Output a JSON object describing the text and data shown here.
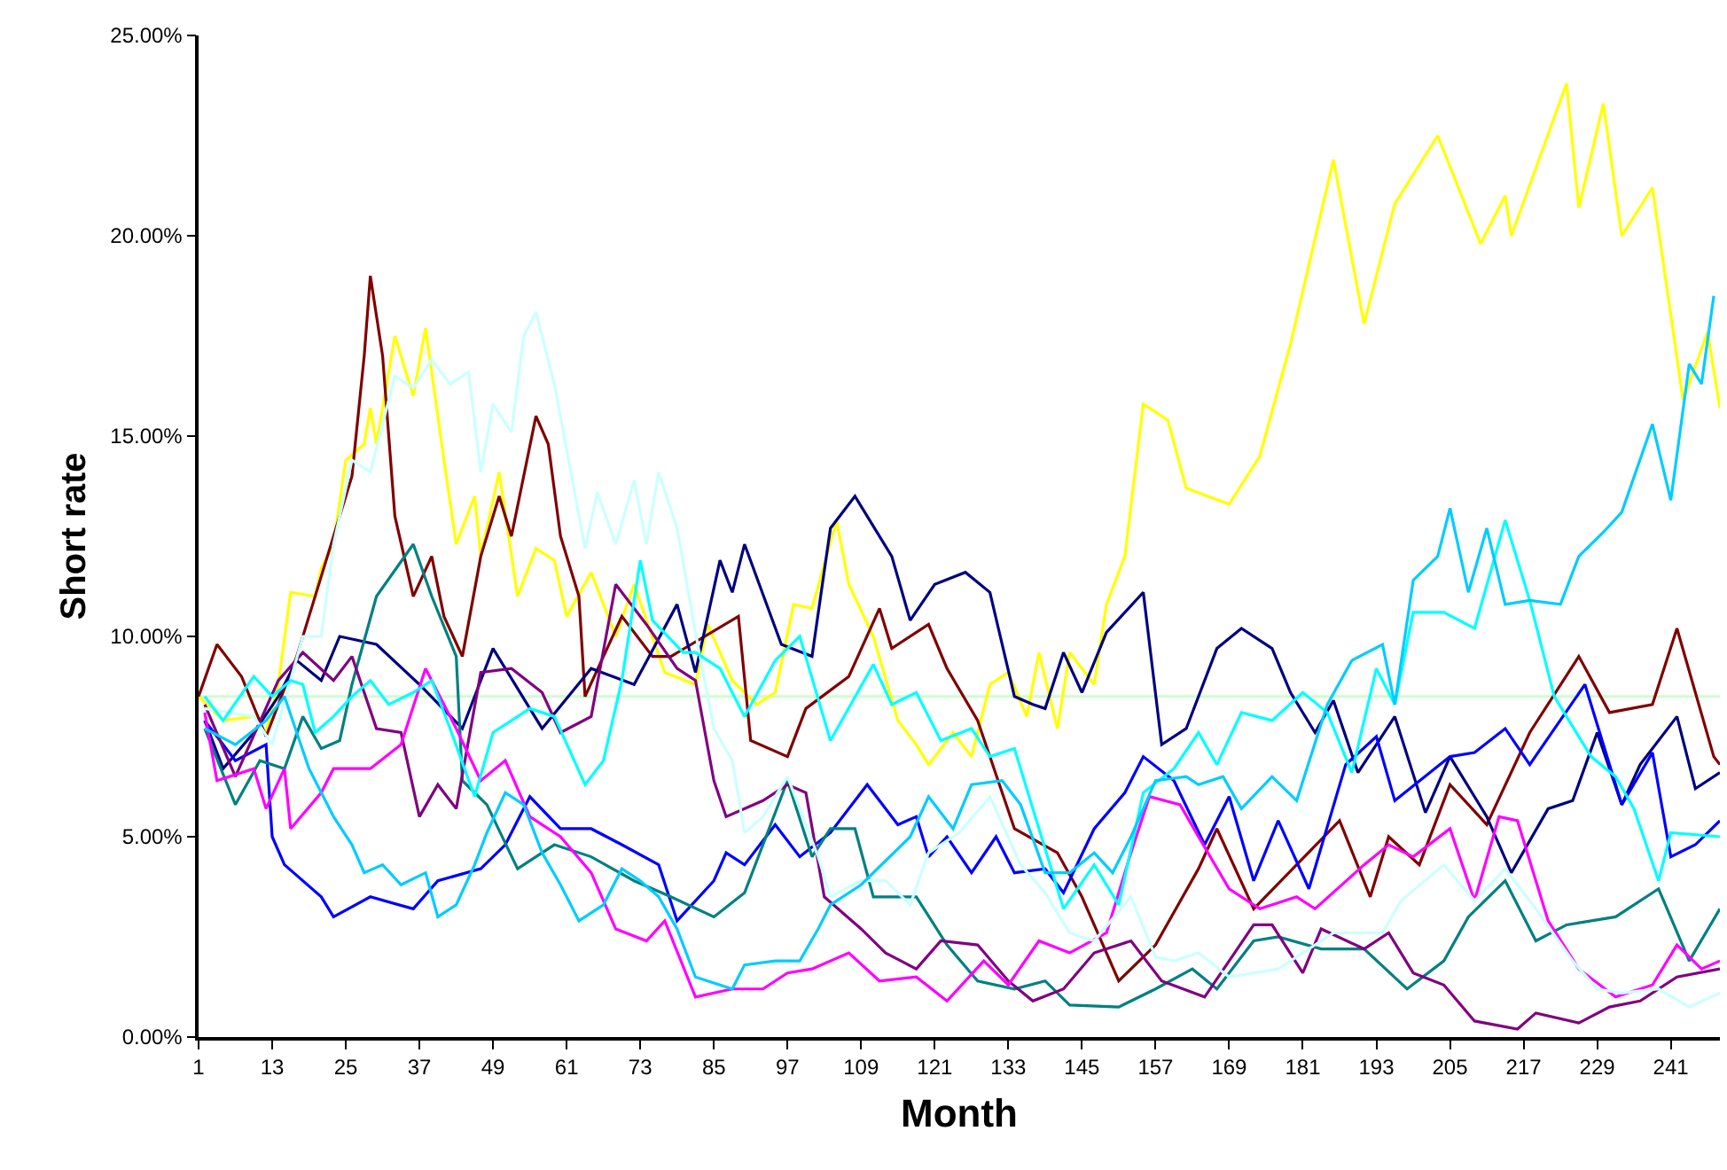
{
  "chart_data": {
    "type": "line",
    "xlabel": "Month",
    "ylabel": "Short rate",
    "xlim": [
      1,
      249
    ],
    "xticks": [
      1,
      13,
      25,
      37,
      49,
      61,
      73,
      85,
      97,
      109,
      121,
      133,
      145,
      157,
      169,
      181,
      193,
      205,
      217,
      229,
      241
    ],
    "ylim": [
      0,
      25
    ],
    "yticks": [
      {
        "value": 0,
        "label": "0.00%"
      },
      {
        "value": 5,
        "label": "5.00%"
      },
      {
        "value": 10,
        "label": "10.00%"
      },
      {
        "value": 15,
        "label": "15.00%"
      },
      {
        "value": 20,
        "label": "20.00%"
      },
      {
        "value": 25,
        "label": "25.00%"
      }
    ],
    "grid": false,
    "marker": "none",
    "line_style": "solid",
    "ref_lines": [
      {
        "axis": "y",
        "value": 8.5,
        "color": "#ccffcc"
      }
    ],
    "series": [
      {
        "color": "#ffff00",
        "x": [
          1,
          5,
          10,
          12,
          14,
          16,
          20,
          21,
          23,
          25,
          28,
          29,
          30,
          33,
          36,
          38,
          41,
          43,
          46,
          47,
          50,
          53,
          56,
          59,
          61,
          65,
          69,
          72,
          77,
          82,
          84,
          88,
          92,
          95,
          98,
          101,
          105,
          107,
          111,
          115,
          118,
          120,
          124,
          127,
          130,
          133,
          136,
          138,
          141,
          143,
          147,
          149,
          152,
          155,
          159,
          162,
          169,
          174,
          179,
          186,
          191,
          196,
          203,
          210,
          214,
          215,
          224,
          226,
          230,
          233,
          238,
          243,
          247,
          249
        ],
        "values": [
          8.5,
          7.9,
          8,
          7.6,
          8.8,
          11.1,
          11,
          11.7,
          12.3,
          14.4,
          14.8,
          15.7,
          14.8,
          17.5,
          16,
          17.7,
          14.4,
          12.3,
          13.5,
          12,
          14.1,
          11,
          12.2,
          11.9,
          10.5,
          11.6,
          10,
          11.3,
          9.1,
          8.8,
          10.3,
          8.9,
          8.3,
          8.6,
          10.8,
          10.7,
          12.9,
          11.3,
          10,
          7.9,
          7.3,
          6.8,
          7.6,
          7,
          8.8,
          9.1,
          8,
          9.6,
          7.7,
          9.6,
          8.8,
          10.8,
          12,
          15.8,
          15.4,
          13.7,
          13.3,
          14.5,
          17.3,
          21.9,
          17.8,
          20.8,
          22.5,
          19.8,
          21,
          20,
          23.8,
          20.7,
          23.3,
          20,
          21.2,
          15.9,
          17.6,
          15.7
        ]
      },
      {
        "color": "#800000",
        "x": [
          1,
          4,
          8,
          12,
          17,
          22,
          26,
          28,
          29,
          31,
          33,
          36,
          39,
          41,
          44,
          47,
          50,
          52,
          56,
          58,
          60,
          63,
          64,
          67,
          70,
          75,
          78,
          89,
          91,
          97,
          100,
          107,
          112,
          114,
          120,
          123,
          128,
          134,
          141,
          145,
          151,
          157,
          164,
          167,
          173,
          187,
          192,
          195,
          200,
          205,
          211,
          218,
          226,
          231,
          238,
          242,
          248,
          249
        ],
        "values": [
          8.5,
          9.8,
          9,
          7.5,
          9.5,
          12,
          14,
          17,
          19,
          17,
          13,
          11,
          12,
          10.5,
          9.5,
          12,
          13.5,
          12.5,
          15.5,
          14.8,
          12.5,
          11,
          8.5,
          9.5,
          10.5,
          9.5,
          9.5,
          10.5,
          7.4,
          7,
          8.2,
          9,
          10.7,
          9.7,
          10.3,
          9.2,
          7.9,
          5.2,
          4.6,
          3.5,
          1.4,
          2.3,
          4.2,
          5.2,
          3.2,
          5.4,
          3.5,
          5,
          4.3,
          6.3,
          5.3,
          7.6,
          9.5,
          8.1,
          8.3,
          10.2,
          7,
          6.8
        ]
      },
      {
        "color": "#000080",
        "x": [
          2,
          5,
          10,
          14,
          17,
          21,
          24,
          30,
          37,
          44,
          49,
          57,
          65,
          72,
          79,
          82,
          86,
          88,
          90,
          96,
          101,
          104,
          108,
          114,
          117,
          121,
          126,
          130,
          134,
          137,
          139,
          142,
          145,
          149,
          155,
          158,
          162,
          167,
          171,
          176,
          179,
          183,
          186,
          190,
          196,
          201,
          205,
          211,
          215,
          221,
          225,
          229,
          233,
          236,
          242,
          245,
          249
        ],
        "values": [
          7.9,
          6.7,
          7.6,
          8.5,
          9.4,
          8.9,
          10,
          9.8,
          8.8,
          7.7,
          9.7,
          7.7,
          9.2,
          8.8,
          10.8,
          9.1,
          11.9,
          11.1,
          12.3,
          9.8,
          9.5,
          12.7,
          13.5,
          12,
          10.4,
          11.3,
          11.6,
          11.1,
          8.5,
          8.3,
          8.2,
          9.6,
          8.6,
          10.1,
          11.1,
          7.3,
          7.7,
          9.7,
          10.2,
          9.7,
          8.6,
          7.6,
          8.4,
          6.6,
          8,
          5.6,
          7,
          5.5,
          4.1,
          5.7,
          5.9,
          7.6,
          5.8,
          6.8,
          8,
          6.2,
          6.6
        ]
      },
      {
        "color": "#0000ff",
        "x": [
          2,
          7,
          12,
          13,
          15,
          21,
          23,
          29,
          36,
          40,
          47,
          51,
          55,
          60,
          65,
          70,
          76,
          79,
          85,
          87,
          90,
          95,
          99,
          104,
          110,
          115,
          118,
          120,
          123,
          127,
          131,
          134,
          139,
          142,
          147,
          152,
          155,
          160,
          165,
          169,
          173,
          177,
          182,
          188,
          193,
          196,
          205,
          209,
          214,
          218,
          227,
          233,
          238,
          241,
          245,
          249
        ],
        "values": [
          7.9,
          6.9,
          7.3,
          5,
          4.3,
          3.5,
          3,
          3.5,
          3.2,
          3.9,
          4.2,
          4.8,
          6,
          5.2,
          5.2,
          4.8,
          4.3,
          2.9,
          3.9,
          4.6,
          4.3,
          5.3,
          4.5,
          5.1,
          6.3,
          5.3,
          5.5,
          4.5,
          5,
          4.1,
          5,
          4.1,
          4.2,
          3.6,
          5.2,
          6.1,
          7,
          6.4,
          4.8,
          6,
          3.9,
          5.4,
          3.7,
          6.8,
          7.5,
          5.9,
          7,
          7.1,
          7.7,
          6.8,
          8.8,
          5.8,
          7.1,
          4.5,
          4.8,
          5.4
        ]
      },
      {
        "color": "#008080",
        "x": [
          2,
          7,
          11,
          15,
          18,
          21,
          24,
          26,
          30,
          36,
          39,
          43,
          44,
          48,
          53,
          59,
          65,
          72,
          78,
          85,
          90,
          97,
          101,
          104,
          108,
          111,
          118,
          123,
          128,
          134,
          139,
          143,
          151,
          157,
          163,
          167,
          173,
          177,
          184,
          191,
          198,
          204,
          208,
          214,
          219,
          224,
          232,
          239,
          244,
          249
        ],
        "values": [
          7.7,
          5.8,
          6.9,
          6.7,
          8,
          7.2,
          7.4,
          8.8,
          11,
          12.3,
          11,
          9.5,
          6.4,
          5.8,
          4.2,
          4.8,
          4.5,
          3.9,
          3.5,
          3,
          3.6,
          6.4,
          4.5,
          5.2,
          5.2,
          3.5,
          3.5,
          2.3,
          1.4,
          1.2,
          1.4,
          0.8,
          0.75,
          1.2,
          1.7,
          1.2,
          2.4,
          2.5,
          2.2,
          2.2,
          1.2,
          1.9,
          3,
          3.9,
          2.4,
          2.8,
          3,
          3.7,
          1.9,
          3.2
        ]
      },
      {
        "color": "#800080",
        "x": [
          2,
          7,
          14,
          18,
          23,
          26,
          30,
          34,
          37,
          40,
          43,
          47,
          52,
          57,
          60,
          65,
          69,
          74,
          79,
          82,
          85,
          87,
          93,
          97,
          100,
          103,
          109,
          113,
          118,
          122,
          128,
          133,
          137,
          142,
          147,
          153,
          158,
          165,
          173,
          176,
          181,
          184,
          191,
          195,
          199,
          204,
          209,
          216,
          219,
          226,
          231,
          236,
          242,
          249
        ],
        "values": [
          8.3,
          6.5,
          8.9,
          9.6,
          8.9,
          9.5,
          7.7,
          7.6,
          5.5,
          6.3,
          5.7,
          9.1,
          9.2,
          8.6,
          7.6,
          8,
          11.3,
          10.3,
          9.2,
          8.9,
          6.4,
          5.5,
          5.9,
          6.3,
          6.1,
          3.5,
          2.7,
          2.1,
          1.7,
          2.4,
          2.3,
          1.4,
          0.9,
          1.2,
          2.1,
          2.4,
          1.4,
          1,
          2.8,
          2.8,
          1.6,
          2.7,
          2.2,
          2.6,
          1.6,
          1.3,
          0.4,
          0.2,
          0.6,
          0.35,
          0.75,
          0.9,
          1.5,
          1.7
        ]
      },
      {
        "color": "#ff00ff",
        "x": [
          2,
          4,
          10,
          12,
          15,
          16,
          21,
          23,
          29,
          34,
          38,
          43,
          47,
          51,
          55,
          60,
          65,
          69,
          74,
          77,
          82,
          88,
          93,
          97,
          101,
          107,
          112,
          118,
          123,
          129,
          133,
          138,
          143,
          149,
          153,
          156,
          161,
          164,
          169,
          174,
          180,
          183,
          191,
          195,
          199,
          205,
          209,
          213,
          216,
          221,
          226,
          232,
          238,
          242,
          246,
          249
        ],
        "values": [
          8.1,
          6.4,
          6.7,
          5.7,
          6.7,
          5.2,
          6.1,
          6.7,
          6.7,
          7.3,
          9.2,
          7.7,
          6.4,
          6.9,
          5.5,
          5,
          4.1,
          2.7,
          2.4,
          2.9,
          1,
          1.2,
          1.2,
          1.6,
          1.7,
          2.1,
          1.4,
          1.5,
          0.9,
          1.9,
          1.3,
          2.4,
          2.1,
          2.6,
          4.6,
          6,
          5.8,
          5,
          3.7,
          3.2,
          3.5,
          3.2,
          4.3,
          4.8,
          4.5,
          5.2,
          3.4,
          5.5,
          5.4,
          2.9,
          1.7,
          1,
          1.3,
          2.3,
          1.7,
          1.9
        ]
      },
      {
        "color": "#ccffff",
        "x": [
          2,
          10,
          13,
          18,
          21,
          23,
          26,
          29,
          33,
          36,
          39,
          42,
          45,
          47,
          49,
          52,
          54,
          56,
          59,
          64,
          66,
          69,
          72,
          74,
          76,
          79,
          82,
          85,
          88,
          90,
          93,
          97,
          102,
          104,
          109,
          113,
          117,
          120,
          125,
          130,
          135,
          139,
          143,
          147,
          153,
          157,
          160,
          164,
          169,
          177,
          186,
          194,
          197,
          204,
          209,
          214,
          219,
          225,
          229,
          233,
          239,
          244,
          249
        ],
        "values": [
          8.2,
          8,
          7.3,
          10,
          10,
          12.3,
          14.4,
          14.1,
          16.5,
          16.2,
          16.9,
          16.3,
          16.6,
          14.1,
          15.8,
          15.1,
          17.5,
          18.1,
          16.3,
          12.2,
          13.6,
          12.3,
          13.9,
          12.3,
          14.1,
          12.7,
          10.1,
          7.7,
          6.9,
          5.1,
          5.5,
          6.5,
          4.5,
          3.5,
          3.9,
          3.9,
          3.3,
          4.6,
          5.1,
          6,
          4.3,
          3.6,
          2.6,
          2.4,
          3.5,
          2,
          1.9,
          2.1,
          1.5,
          1.7,
          2.6,
          2.6,
          3.4,
          4.3,
          3.4,
          4.2,
          3.2,
          1.9,
          1.2,
          1.1,
          1.2,
          0.75,
          1.1
        ]
      },
      {
        "color": "#00ffff",
        "x": [
          2,
          5,
          10,
          13,
          16,
          18,
          20,
          23,
          26,
          29,
          32,
          36,
          39,
          42,
          46,
          49,
          55,
          59,
          64,
          67,
          70,
          73,
          75,
          80,
          82,
          86,
          90,
          95,
          99,
          104,
          111,
          114,
          118,
          122,
          127,
          130,
          134,
          138,
          142,
          147,
          151,
          155,
          160,
          164,
          167,
          171,
          176,
          181,
          185,
          189,
          193,
          196,
          199,
          204,
          209,
          214,
          218,
          222,
          228,
          232,
          235,
          239,
          241,
          249
        ],
        "values": [
          8.5,
          7.9,
          9,
          8.5,
          8.9,
          8.8,
          7.6,
          8,
          8.5,
          8.9,
          8.3,
          8.6,
          8.9,
          7.7,
          6,
          7.6,
          8.2,
          8,
          6.3,
          6.9,
          8.9,
          11.9,
          10.4,
          9.6,
          9.6,
          9.2,
          8,
          9.4,
          10,
          7.4,
          9.3,
          8.3,
          8.6,
          7.4,
          7.7,
          7,
          7.2,
          5.2,
          3.2,
          4.3,
          3.3,
          6.1,
          6.7,
          7.6,
          6.8,
          8.1,
          7.9,
          8.6,
          8.1,
          6.6,
          9.2,
          8.3,
          10.6,
          10.6,
          10.2,
          12.9,
          10.9,
          8.5,
          7,
          6.5,
          5.7,
          3.9,
          5.1,
          5
        ]
      },
      {
        "color": "#00ccff",
        "x": [
          2,
          7,
          12,
          15,
          19,
          22,
          23,
          26,
          28,
          31,
          34,
          38,
          40,
          43,
          46,
          48,
          51,
          54,
          57,
          60,
          63,
          67,
          70,
          73,
          76,
          79,
          82,
          88,
          90,
          95,
          99,
          102,
          104,
          109,
          117,
          120,
          124,
          127,
          132,
          135,
          139,
          143,
          147,
          150,
          153,
          157,
          162,
          164,
          168,
          171,
          176,
          180,
          185,
          189,
          194,
          196,
          199,
          203,
          205,
          208,
          211,
          214,
          218,
          223,
          226,
          230,
          233,
          238,
          241,
          244,
          246,
          248
        ],
        "values": [
          7.7,
          7.3,
          7.9,
          8.5,
          6.7,
          5.8,
          5.5,
          4.8,
          4.1,
          4.3,
          3.8,
          4.1,
          3,
          3.3,
          4.3,
          5.1,
          6.1,
          5.8,
          4.6,
          3.8,
          2.9,
          3.3,
          4.2,
          3.9,
          3.5,
          2.7,
          1.5,
          1.2,
          1.8,
          1.9,
          1.9,
          2.7,
          3.3,
          3.8,
          5,
          6,
          5.2,
          6.3,
          6.4,
          5.8,
          4.1,
          4.1,
          4.6,
          4.1,
          5,
          6.4,
          6.5,
          6.3,
          6.5,
          5.7,
          6.5,
          5.9,
          8.3,
          9.4,
          9.8,
          8.3,
          11.4,
          12,
          13.2,
          11.1,
          12.7,
          10.8,
          10.9,
          10.8,
          12,
          12.6,
          13.1,
          15.3,
          13.4,
          16.8,
          16.3,
          18.5
        ]
      }
    ]
  }
}
